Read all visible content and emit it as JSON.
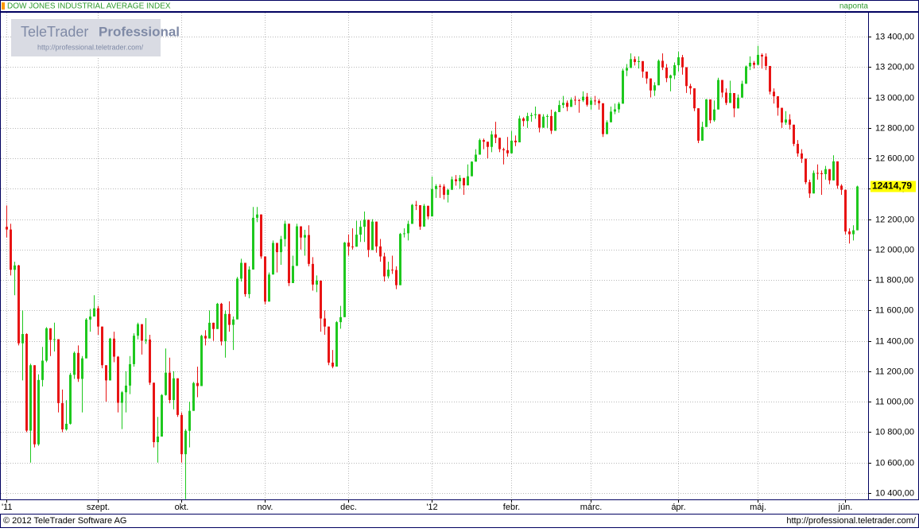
{
  "chart_data": {
    "type": "candlestick",
    "title": "DOW JONES INDUSTRIAL AVERAGE INDEX",
    "interval": "naponta",
    "up_color": "#1ec81e",
    "down_color": "#e81414",
    "grid": true,
    "ylim": [
      10358,
      13557
    ],
    "yticks": [
      {
        "value": 10400,
        "label": "10 400,00"
      },
      {
        "value": 10600,
        "label": "10 600,00"
      },
      {
        "value": 10800,
        "label": "10 800,00"
      },
      {
        "value": 11000,
        "label": "11 000,00"
      },
      {
        "value": 11200,
        "label": "11 200,00"
      },
      {
        "value": 11400,
        "label": "11 400,00"
      },
      {
        "value": 11600,
        "label": "11 600,00"
      },
      {
        "value": 11800,
        "label": "11 800,00"
      },
      {
        "value": 12000,
        "label": "12 000,00"
      },
      {
        "value": 12200,
        "label": "12 200,00"
      },
      {
        "value": 12400,
        "label": "12 400,00"
      },
      {
        "value": 12600,
        "label": "12 600,00"
      },
      {
        "value": 12800,
        "label": "12 800,00"
      },
      {
        "value": 13000,
        "label": "13 000,00"
      },
      {
        "value": 13200,
        "label": "13 200,00"
      },
      {
        "value": 13400,
        "label": "13 400,00"
      }
    ],
    "categories": [
      "'11",
      null,
      null,
      null,
      null,
      null,
      null,
      null,
      null,
      null,
      null,
      null,
      null,
      null,
      null,
      null,
      null,
      null,
      null,
      null,
      null,
      null,
      null,
      "szept.",
      null,
      null,
      null,
      null,
      null,
      null,
      null,
      null,
      null,
      null,
      null,
      null,
      null,
      null,
      null,
      null,
      null,
      null,
      null,
      null,
      "okt.",
      null,
      null,
      null,
      null,
      null,
      null,
      null,
      null,
      null,
      null,
      null,
      null,
      null,
      null,
      null,
      null,
      null,
      null,
      null,
      null,
      "nov.",
      null,
      null,
      null,
      null,
      null,
      null,
      null,
      null,
      null,
      null,
      null,
      null,
      null,
      null,
      null,
      null,
      null,
      null,
      null,
      null,
      "dec.",
      null,
      null,
      null,
      null,
      null,
      null,
      null,
      null,
      null,
      null,
      null,
      null,
      null,
      null,
      null,
      null,
      null,
      null,
      null,
      null,
      "'12",
      null,
      null,
      null,
      null,
      null,
      null,
      null,
      null,
      null,
      null,
      null,
      null,
      null,
      null,
      null,
      null,
      null,
      null,
      null,
      "febr.",
      null,
      null,
      null,
      null,
      null,
      null,
      null,
      null,
      null,
      null,
      null,
      null,
      null,
      null,
      null,
      null,
      null,
      null,
      null,
      "márc.",
      null,
      null,
      null,
      null,
      null,
      null,
      null,
      null,
      null,
      null,
      null,
      null,
      null,
      null,
      null,
      null,
      null,
      null,
      null,
      null,
      null,
      "ápr.",
      null,
      null,
      null,
      null,
      null,
      null,
      null,
      null,
      null,
      null,
      null,
      null,
      null,
      null,
      null,
      null,
      null,
      null,
      null,
      "máj.",
      null,
      null,
      null,
      null,
      null,
      null,
      null,
      null,
      null,
      null,
      null,
      null,
      null,
      null,
      null,
      null,
      null,
      null,
      null,
      null,
      null,
      "jún.",
      null,
      null,
      null
    ],
    "open": [
      12150,
      12132,
      11867,
      11896,
      11384,
      11445,
      10810,
      11240,
      10720,
      11143,
      11270,
      11483,
      11406,
      11411,
      10991,
      10818,
      10855,
      11177,
      11321,
      11150,
      11285,
      11540,
      11560,
      11614,
      11494,
      11240,
      11140,
      11415,
      11296,
      10993,
      11062,
      11106,
      11247,
      11434,
      11510,
      11401,
      11409,
      11125,
      10734,
      10771,
      11044,
      11191,
      11011,
      11154,
      10913,
      10655,
      10809,
      10940,
      11123,
      11103,
      11433,
      11416,
      11519,
      11478,
      11644,
      11397,
      11577,
      11505,
      11541,
      11809,
      11913,
      11707,
      11869,
      12209,
      12231,
      11955,
      11658,
      11836,
      12044,
      11983,
      12069,
      12170,
      11780,
      11893,
      12153,
      12079,
      12096,
      11906,
      11770,
      11796,
      11547,
      11494,
      11257,
      11231,
      11523,
      11556,
      12046,
      12020,
      12019,
      12098,
      12150,
      12196,
      11997,
      12184,
      12021,
      11955,
      11824,
      11868,
      11866,
      11766,
      12103,
      12107,
      12169,
      12294,
      12292,
      12151,
      12288,
      12218,
      12398,
      12418,
      12415,
      12360,
      12393,
      12462,
      12449,
      12471,
      12422,
      12482,
      12578,
      12624,
      12720,
      12709,
      12675,
      12757,
      12735,
      12660,
      12653,
      12633,
      12716,
      12705,
      12862,
      12845,
      12878,
      12884,
      12890,
      12801,
      12874,
      12878,
      12781,
      12904,
      12950,
      12965,
      12938,
      12985,
      12983,
      12981,
      13005,
      12952,
      12980,
      12978,
      12962,
      12759,
      12837,
      12907,
      12922,
      12959,
      13177,
      13194,
      13252,
      13233,
      13239,
      13170,
      13125,
      13046,
      13080,
      13241,
      13197,
      13127,
      13145,
      13212,
      13264,
      13199,
      13075,
      13060,
      12929,
      12716,
      12806,
      12987,
      12850,
      12921,
      13115,
      13032,
      12964,
      13029,
      12928,
      12999,
      13090,
      13204,
      13228,
      13214,
      13280,
      13269,
      13207,
      13038,
      13008,
      12932,
      12835,
      12855,
      12821,
      12695,
      12632,
      12598,
      12443,
      12369,
      12504,
      12502,
      12496,
      12529,
      12455,
      12580,
      12420,
      12393,
      12119,
      12101,
      12127
    ],
    "high": [
      12290,
      12170,
      11920,
      11900,
      11600,
      11450,
      11250,
      11240,
      11180,
      11360,
      11490,
      11483,
      11520,
      11411,
      11080,
      11010,
      11190,
      11330,
      11370,
      11300,
      11550,
      11610,
      11700,
      11630,
      11494,
      11240,
      11420,
      11460,
      11300,
      11070,
      11200,
      11300,
      11450,
      11520,
      11510,
      11550,
      11440,
      11125,
      10900,
      11050,
      11350,
      11290,
      11200,
      11154,
      10930,
      10820,
      11000,
      11130,
      11230,
      11440,
      11470,
      11600,
      11520,
      11650,
      11650,
      11600,
      11660,
      11560,
      11820,
      11940,
      11913,
      11890,
      12280,
      12280,
      12231,
      11955,
      11850,
      12060,
      12044,
      12090,
      12190,
      12170,
      11960,
      12170,
      12153,
      12130,
      12160,
      11950,
      11830,
      11796,
      11600,
      11494,
      11340,
      11530,
      11630,
      12050,
      12100,
      12140,
      12190,
      12190,
      12250,
      12196,
      12200,
      12184,
      12070,
      11980,
      11920,
      11960,
      11890,
      12110,
      12140,
      12190,
      12300,
      12320,
      12292,
      12300,
      12288,
      12480,
      12430,
      12430,
      12430,
      12400,
      12480,
      12490,
      12490,
      12471,
      12560,
      12580,
      12660,
      12730,
      12730,
      12709,
      12780,
      12840,
      12735,
      12670,
      12740,
      12780,
      12750,
      12880,
      12870,
      12900,
      12900,
      12940,
      12890,
      12890,
      12890,
      12920,
      12910,
      12980,
      13010,
      12980,
      13000,
      13010,
      12990,
      13040,
      13030,
      13000,
      13010,
      12990,
      12962,
      12850,
      12940,
      12960,
      12970,
      13190,
      13220,
      13290,
      13270,
      13270,
      13239,
      13170,
      13125,
      13100,
      13250,
      13290,
      13220,
      13150,
      13230,
      13300,
      13280,
      13199,
      13090,
      13060,
      12929,
      12840,
      12990,
      12987,
      12980,
      13130,
      13115,
      13060,
      13110,
      13029,
      13020,
      13110,
      13210,
      13270,
      13240,
      13340,
      13290,
      13290,
      13207,
      13060,
      13008,
      12932,
      12910,
      12890,
      12821,
      12720,
      12660,
      12598,
      12460,
      12520,
      12560,
      12520,
      12550,
      12529,
      12620,
      12580,
      12430,
      12393,
      12140,
      12160,
      12420
    ],
    "low": [
      12080,
      11830,
      11700,
      11370,
      11140,
      10800,
      10600,
      10700,
      10710,
      11100,
      11260,
      11300,
      11330,
      10930,
      10800,
      10810,
      10850,
      11150,
      11130,
      10930,
      11285,
      11460,
      11560,
      11440,
      11220,
      11000,
      11140,
      11260,
      10930,
      10820,
      10930,
      11050,
      11230,
      11410,
      11310,
      11380,
      11110,
      10700,
      10600,
      10771,
      11040,
      10990,
      10950,
      10900,
      10600,
      10360,
      10700,
      10940,
      11030,
      11103,
      11370,
      11416,
      11400,
      11478,
      11370,
      11290,
      11460,
      11340,
      11541,
      11790,
      11690,
      11680,
      11869,
      12180,
      11940,
      11640,
      11658,
      11836,
      11850,
      11900,
      12020,
      11760,
      11780,
      11893,
      12000,
      11960,
      11890,
      11730,
      11720,
      11460,
      11440,
      11240,
      11220,
      11231,
      11480,
      11556,
      11960,
      12000,
      12019,
      12050,
      12050,
      11950,
      11997,
      11980,
      11920,
      11790,
      11810,
      11840,
      11740,
      11766,
      12080,
      12060,
      12169,
      12260,
      12130,
      12151,
      12200,
      12218,
      12340,
      12340,
      12330,
      12310,
      12393,
      12420,
      12400,
      12360,
      12422,
      12482,
      12578,
      12624,
      12660,
      12600,
      12640,
      12700,
      12640,
      12560,
      12610,
      12633,
      12680,
      12705,
      12810,
      12800,
      12840,
      12860,
      12770,
      12801,
      12800,
      12760,
      12781,
      12904,
      12930,
      12910,
      12938,
      12950,
      12900,
      12970,
      12940,
      12920,
      12950,
      12920,
      12740,
      12759,
      12837,
      12890,
      12900,
      12959,
      13140,
      13194,
      13210,
      13190,
      13130,
      13090,
      13000,
      13010,
      13080,
      13180,
      13100,
      13040,
      13120,
      13170,
      13150,
      13030,
      13020,
      12910,
      12700,
      12716,
      12806,
      12830,
      12840,
      12921,
      13000,
      12950,
      12964,
      12870,
      12928,
      12999,
      13090,
      13180,
      13190,
      13214,
      13190,
      13180,
      13020,
      12960,
      12880,
      12800,
      12820,
      12790,
      12680,
      12610,
      12570,
      12430,
      12340,
      12369,
      12460,
      12360,
      12460,
      12430,
      12455,
      12400,
      12360,
      12100,
      12040,
      12060,
      12127
    ],
    "close": [
      12132,
      11867,
      11896,
      11384,
      11445,
      10810,
      11240,
      10720,
      11143,
      11270,
      11483,
      11406,
      11411,
      10991,
      10818,
      10855,
      11177,
      11321,
      11150,
      11285,
      11540,
      11560,
      11614,
      11494,
      11240,
      11140,
      11415,
      11296,
      10993,
      11062,
      11106,
      11247,
      11434,
      11510,
      11401,
      11409,
      11125,
      10734,
      10771,
      11044,
      11191,
      11011,
      11154,
      10913,
      10655,
      10809,
      10940,
      11123,
      11103,
      11433,
      11416,
      11519,
      11478,
      11644,
      11397,
      11577,
      11505,
      11541,
      11809,
      11913,
      11707,
      11869,
      12209,
      12231,
      11955,
      11658,
      11836,
      12044,
      11983,
      12069,
      12170,
      11780,
      11893,
      12153,
      12079,
      12096,
      11906,
      11770,
      11796,
      11547,
      11494,
      11257,
      11231,
      11523,
      11556,
      12046,
      12020,
      12019,
      12098,
      12150,
      12196,
      11997,
      12184,
      12021,
      11955,
      11824,
      11868,
      11866,
      11766,
      12103,
      12107,
      12169,
      12294,
      12292,
      12151,
      12288,
      12218,
      12398,
      12418,
      12415,
      12360,
      12393,
      12462,
      12449,
      12471,
      12422,
      12482,
      12578,
      12624,
      12720,
      12709,
      12675,
      12757,
      12735,
      12660,
      12653,
      12633,
      12716,
      12705,
      12862,
      12845,
      12878,
      12884,
      12890,
      12801,
      12874,
      12878,
      12781,
      12904,
      12950,
      12965,
      12938,
      12985,
      12983,
      12981,
      13005,
      12952,
      12980,
      12978,
      12962,
      12759,
      12837,
      12907,
      12922,
      12959,
      13177,
      13194,
      13252,
      13233,
      13239,
      13170,
      13125,
      13046,
      13080,
      13241,
      13197,
      13127,
      13145,
      13212,
      13264,
      13199,
      13075,
      13060,
      12929,
      12716,
      12806,
      12987,
      12850,
      12921,
      13115,
      13032,
      12964,
      13029,
      12928,
      12999,
      13090,
      13204,
      13228,
      13214,
      13280,
      13269,
      13207,
      13038,
      13008,
      12932,
      12835,
      12855,
      12821,
      12695,
      12632,
      12598,
      12443,
      12369,
      12504,
      12502,
      12496,
      12529,
      12455,
      12580,
      12420,
      12393,
      12119,
      12101,
      12127,
      12414.79
    ],
    "last_value_label": "12414,79"
  },
  "logo": {
    "name": "TeleTrader",
    "tier": "Professional",
    "url": "http://professional.teletrader.com/"
  },
  "footer": {
    "copyright": "© 2012 TeleTrader Software AG",
    "url": "http://professional.teletrader.com/"
  }
}
